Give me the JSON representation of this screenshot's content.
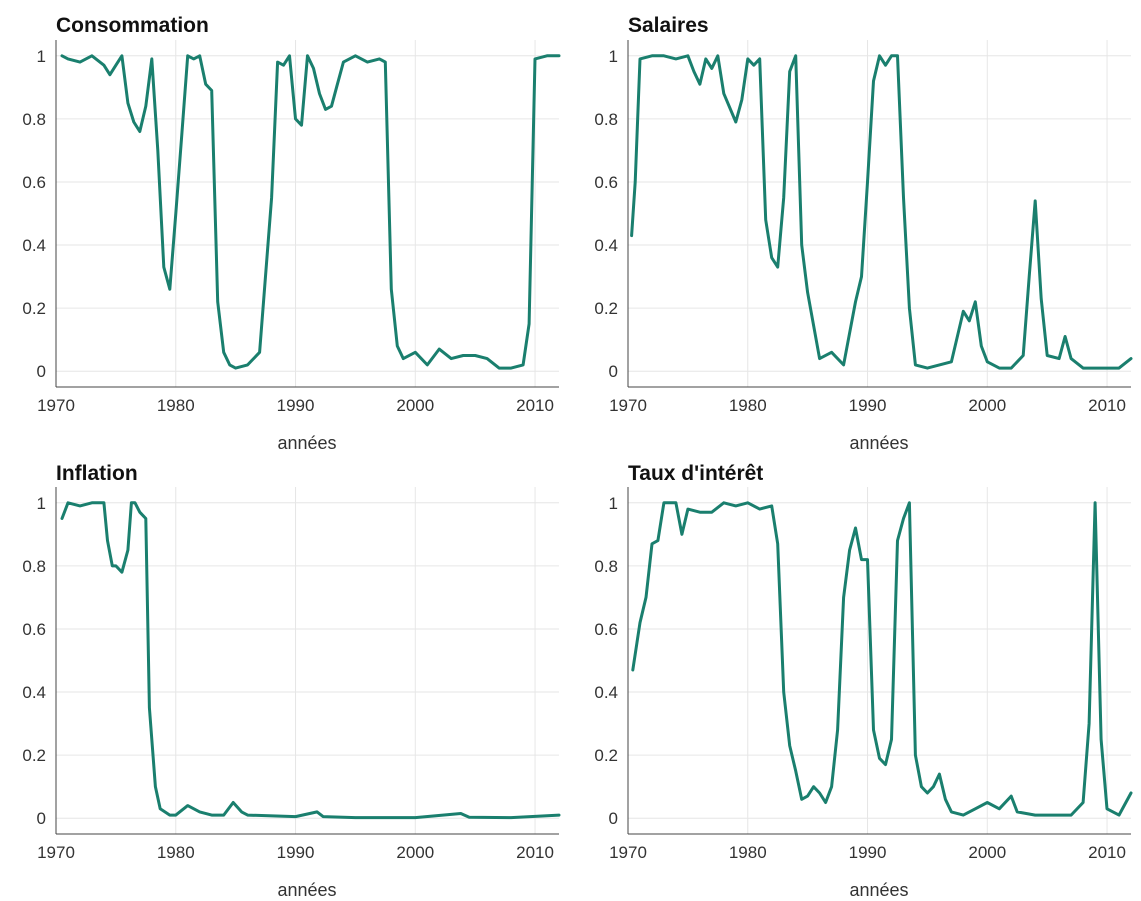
{
  "figure": {
    "line_color": "#1a7f6e"
  },
  "chart_data": [
    {
      "type": "line",
      "title": "Consommation",
      "xlabel": "années",
      "ylabel": "",
      "xlim": [
        1970,
        2012
      ],
      "ylim": [
        -0.05,
        1.05
      ],
      "xticks": [
        1970,
        1980,
        1990,
        2000,
        2010
      ],
      "yticks": [
        0,
        0.2,
        0.4,
        0.6,
        0.8,
        1
      ],
      "ytick_labels": [
        "0",
        "0.2",
        "0.4",
        "0.6",
        "0.8",
        "1"
      ],
      "grid": true,
      "series": [
        {
          "name": "Consommation",
          "x": [
            1970.5,
            1971,
            1972,
            1973,
            1974,
            1974.5,
            1975,
            1975.5,
            1976,
            1976.5,
            1977,
            1977.5,
            1978,
            1978.5,
            1979,
            1979.5,
            1980,
            1980.5,
            1981,
            1981.5,
            1982,
            1982.5,
            1983,
            1983.5,
            1984,
            1984.5,
            1985,
            1986,
            1987,
            1988,
            1988.5,
            1989,
            1989.5,
            1990,
            1990.5,
            1991,
            1991.5,
            1992,
            1992.5,
            1993,
            1993.5,
            1994,
            1995,
            1996,
            1997,
            1997.5,
            1998,
            1998.5,
            1999,
            2000,
            2001,
            2002,
            2003,
            2004,
            2005,
            2006,
            2007,
            2008,
            2009,
            2009.5,
            2010,
            2011,
            2012
          ],
          "y": [
            1,
            0.99,
            0.98,
            1,
            0.97,
            0.94,
            0.97,
            1,
            0.85,
            0.79,
            0.76,
            0.84,
            0.99,
            0.7,
            0.33,
            0.26,
            0.5,
            0.75,
            1,
            0.99,
            1,
            0.91,
            0.89,
            0.22,
            0.06,
            0.02,
            0.01,
            0.02,
            0.06,
            0.55,
            0.98,
            0.97,
            1,
            0.8,
            0.78,
            1,
            0.96,
            0.88,
            0.83,
            0.84,
            0.91,
            0.98,
            1,
            0.98,
            0.99,
            0.98,
            0.26,
            0.08,
            0.04,
            0.06,
            0.02,
            0.07,
            0.04,
            0.05,
            0.05,
            0.04,
            0.01,
            0.01,
            0.02,
            0.15,
            0.99,
            1,
            1
          ]
        }
      ]
    },
    {
      "type": "line",
      "title": "Salaires",
      "xlabel": "années",
      "ylabel": "",
      "xlim": [
        1970,
        2012
      ],
      "ylim": [
        -0.05,
        1.05
      ],
      "xticks": [
        1970,
        1980,
        1990,
        2000,
        2010
      ],
      "yticks": [
        0,
        0.2,
        0.4,
        0.6,
        0.8,
        1
      ],
      "ytick_labels": [
        "0",
        "0.2",
        "0.4",
        "0.6",
        "0.8",
        "1"
      ],
      "grid": true,
      "series": [
        {
          "name": "Salaires",
          "x": [
            1970.3,
            1970.6,
            1971,
            1972,
            1973,
            1974,
            1975,
            1975.5,
            1976,
            1976.5,
            1977,
            1977.5,
            1978,
            1979,
            1979.5,
            1980,
            1980.5,
            1981,
            1981.5,
            1982,
            1982.5,
            1983,
            1983.5,
            1984,
            1984.5,
            1985,
            1986,
            1987,
            1988,
            1989,
            1989.5,
            1990,
            1990.5,
            1991,
            1991.5,
            1992,
            1992.5,
            1993,
            1993.5,
            1994,
            1995,
            1996,
            1997,
            1998,
            1998.5,
            1999,
            1999.5,
            2000,
            2001,
            2002,
            2003,
            2003.5,
            2004,
            2004.5,
            2005,
            2006,
            2006.5,
            2007,
            2008,
            2009,
            2010,
            2011,
            2012
          ],
          "y": [
            0.43,
            0.6,
            0.99,
            1,
            1,
            0.99,
            1,
            0.95,
            0.91,
            0.99,
            0.96,
            1,
            0.88,
            0.79,
            0.86,
            0.99,
            0.97,
            0.99,
            0.48,
            0.36,
            0.33,
            0.55,
            0.95,
            1,
            0.4,
            0.25,
            0.04,
            0.06,
            0.02,
            0.22,
            0.3,
            0.6,
            0.92,
            1,
            0.97,
            1,
            1,
            0.55,
            0.2,
            0.02,
            0.01,
            0.02,
            0.03,
            0.19,
            0.16,
            0.22,
            0.08,
            0.03,
            0.01,
            0.01,
            0.05,
            0.3,
            0.54,
            0.23,
            0.05,
            0.04,
            0.11,
            0.04,
            0.01,
            0.01,
            0.01,
            0.01,
            0.04
          ]
        }
      ]
    },
    {
      "type": "line",
      "title": "Inflation",
      "xlabel": "années",
      "ylabel": "",
      "xlim": [
        1970,
        2012
      ],
      "ylim": [
        -0.05,
        1.05
      ],
      "xticks": [
        1970,
        1980,
        1990,
        2000,
        2010
      ],
      "yticks": [
        0,
        0.2,
        0.4,
        0.6,
        0.8,
        1
      ],
      "ytick_labels": [
        "0",
        "0.2",
        "0.4",
        "0.6",
        "0.8",
        "1"
      ],
      "grid": true,
      "series": [
        {
          "name": "Inflation",
          "x": [
            1970.5,
            1971,
            1972,
            1973,
            1974,
            1974.3,
            1974.7,
            1975,
            1975.5,
            1976,
            1976.3,
            1976.6,
            1977,
            1977.5,
            1977.8,
            1978.3,
            1978.7,
            1979.5,
            1980,
            1981,
            1982,
            1983,
            1984,
            1984.8,
            1985.5,
            1986,
            1990,
            1991.8,
            1992.3,
            1995,
            2000,
            2003.8,
            2004.5,
            2008,
            2012
          ],
          "y": [
            0.95,
            1,
            0.99,
            1,
            1,
            0.88,
            0.8,
            0.8,
            0.78,
            0.85,
            1,
            1,
            0.97,
            0.95,
            0.35,
            0.1,
            0.03,
            0.01,
            0.01,
            0.04,
            0.02,
            0.01,
            0.01,
            0.05,
            0.02,
            0.01,
            0.005,
            0.02,
            0.005,
            0.002,
            0.002,
            0.015,
            0.003,
            0.002,
            0.01
          ]
        }
      ]
    },
    {
      "type": "line",
      "title": "Taux d'intérêt",
      "xlabel": "années",
      "ylabel": "",
      "xlim": [
        1970,
        2012
      ],
      "ylim": [
        -0.05,
        1.05
      ],
      "xticks": [
        1970,
        1980,
        1990,
        2000,
        2010
      ],
      "yticks": [
        0,
        0.2,
        0.4,
        0.6,
        0.8,
        1
      ],
      "ytick_labels": [
        "0",
        "0.2",
        "0.4",
        "0.6",
        "0.8",
        "1"
      ],
      "grid": true,
      "series": [
        {
          "name": "Taux d'intérêt",
          "x": [
            1970.4,
            1971,
            1971.5,
            1972,
            1972.5,
            1973,
            1974,
            1974.5,
            1975,
            1976,
            1977,
            1978,
            1979,
            1980,
            1981,
            1982,
            1982.5,
            1983,
            1983.5,
            1984,
            1984.5,
            1985,
            1985.5,
            1986,
            1986.5,
            1987,
            1987.5,
            1988,
            1988.5,
            1989,
            1989.5,
            1990,
            1990.5,
            1991,
            1991.5,
            1992,
            1992.5,
            1993,
            1993.5,
            1994,
            1994.5,
            1995,
            1995.5,
            1996,
            1996.5,
            1997,
            1998,
            1999,
            2000,
            2001,
            2002,
            2002.5,
            2004,
            2007,
            2008,
            2008.5,
            2009,
            2009.5,
            2010,
            2011,
            2012
          ],
          "y": [
            0.47,
            0.62,
            0.7,
            0.87,
            0.88,
            1,
            1,
            0.9,
            0.98,
            0.97,
            0.97,
            1,
            0.99,
            1,
            0.98,
            0.99,
            0.87,
            0.4,
            0.23,
            0.15,
            0.06,
            0.07,
            0.1,
            0.08,
            0.05,
            0.1,
            0.28,
            0.7,
            0.85,
            0.92,
            0.82,
            0.82,
            0.28,
            0.19,
            0.17,
            0.25,
            0.88,
            0.95,
            1,
            0.2,
            0.1,
            0.08,
            0.1,
            0.14,
            0.06,
            0.02,
            0.01,
            0.03,
            0.05,
            0.03,
            0.07,
            0.02,
            0.01,
            0.01,
            0.05,
            0.3,
            1,
            0.25,
            0.03,
            0.01,
            0.08
          ]
        }
      ]
    }
  ]
}
